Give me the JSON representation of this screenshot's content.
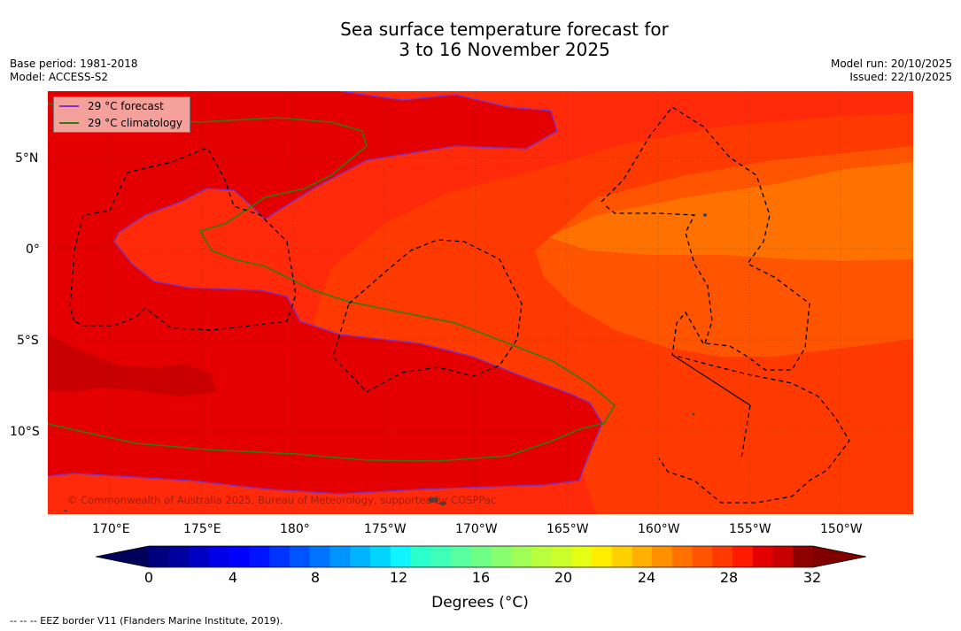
{
  "title": {
    "line1": "Sea surface temperature forecast for",
    "line2": "3 to 16 November 2025"
  },
  "meta_left": {
    "base_period": "Base period: 1981-2018",
    "model": "Model: ACCESS-S2"
  },
  "meta_right": {
    "model_run": "Model run: 20/10/2025",
    "issued": "Issued: 22/10/2025"
  },
  "map": {
    "lat_ticks": [
      "5°N",
      "0°",
      "5°S",
      "10°S"
    ],
    "lon_ticks": [
      "170°E",
      "175°E",
      "180°",
      "175°W",
      "170°W",
      "165°W",
      "160°W",
      "155°W",
      "150°W"
    ],
    "colors": {
      "t28": "#ff2a0a",
      "t29": "#e40000",
      "t30": "#c90000",
      "t27": "#ff3a00",
      "t26": "#ff5500",
      "t25": "#ff7200",
      "forecast_contour": "#8030c0",
      "climatology_contour": "#2f7a10",
      "eez_border": "#000000"
    },
    "copyright": "© Commonwealth of Australia 2025, Bureau of Meteorology, supported by COSPPac"
  },
  "legend": {
    "forecast_label": "29 °C  forecast",
    "climatology_label": "29 °C  climatology"
  },
  "colorbar": {
    "min": 0,
    "max": 32,
    "step": 1,
    "ticks": [
      "0",
      "4",
      "8",
      "12",
      "16",
      "20",
      "24",
      "28",
      "32"
    ],
    "label": "Degrees (°C)",
    "colors": [
      "#00007f",
      "#0000a0",
      "#0000c4",
      "#0000e8",
      "#0000ff",
      "#0014ff",
      "#0034ff",
      "#0054ff",
      "#0074ff",
      "#0094ff",
      "#00b4ff",
      "#00d4ff",
      "#0ff4ff",
      "#2bffcb",
      "#3fffb7",
      "#57ff9f",
      "#6fff87",
      "#87ff6f",
      "#9fff57",
      "#b7ff3f",
      "#cbff2b",
      "#e4ff13",
      "#ffee00",
      "#ffd000",
      "#ffb000",
      "#ff9000",
      "#ff7200",
      "#ff5500",
      "#ff3a00",
      "#ff1a00",
      "#e40000",
      "#c90000",
      "#8f0000"
    ],
    "extend_low": "#00005a",
    "extend_high": "#800000"
  },
  "footer": "--  --  -- EEZ border V11 (Flanders Marine Institute, 2019)."
}
